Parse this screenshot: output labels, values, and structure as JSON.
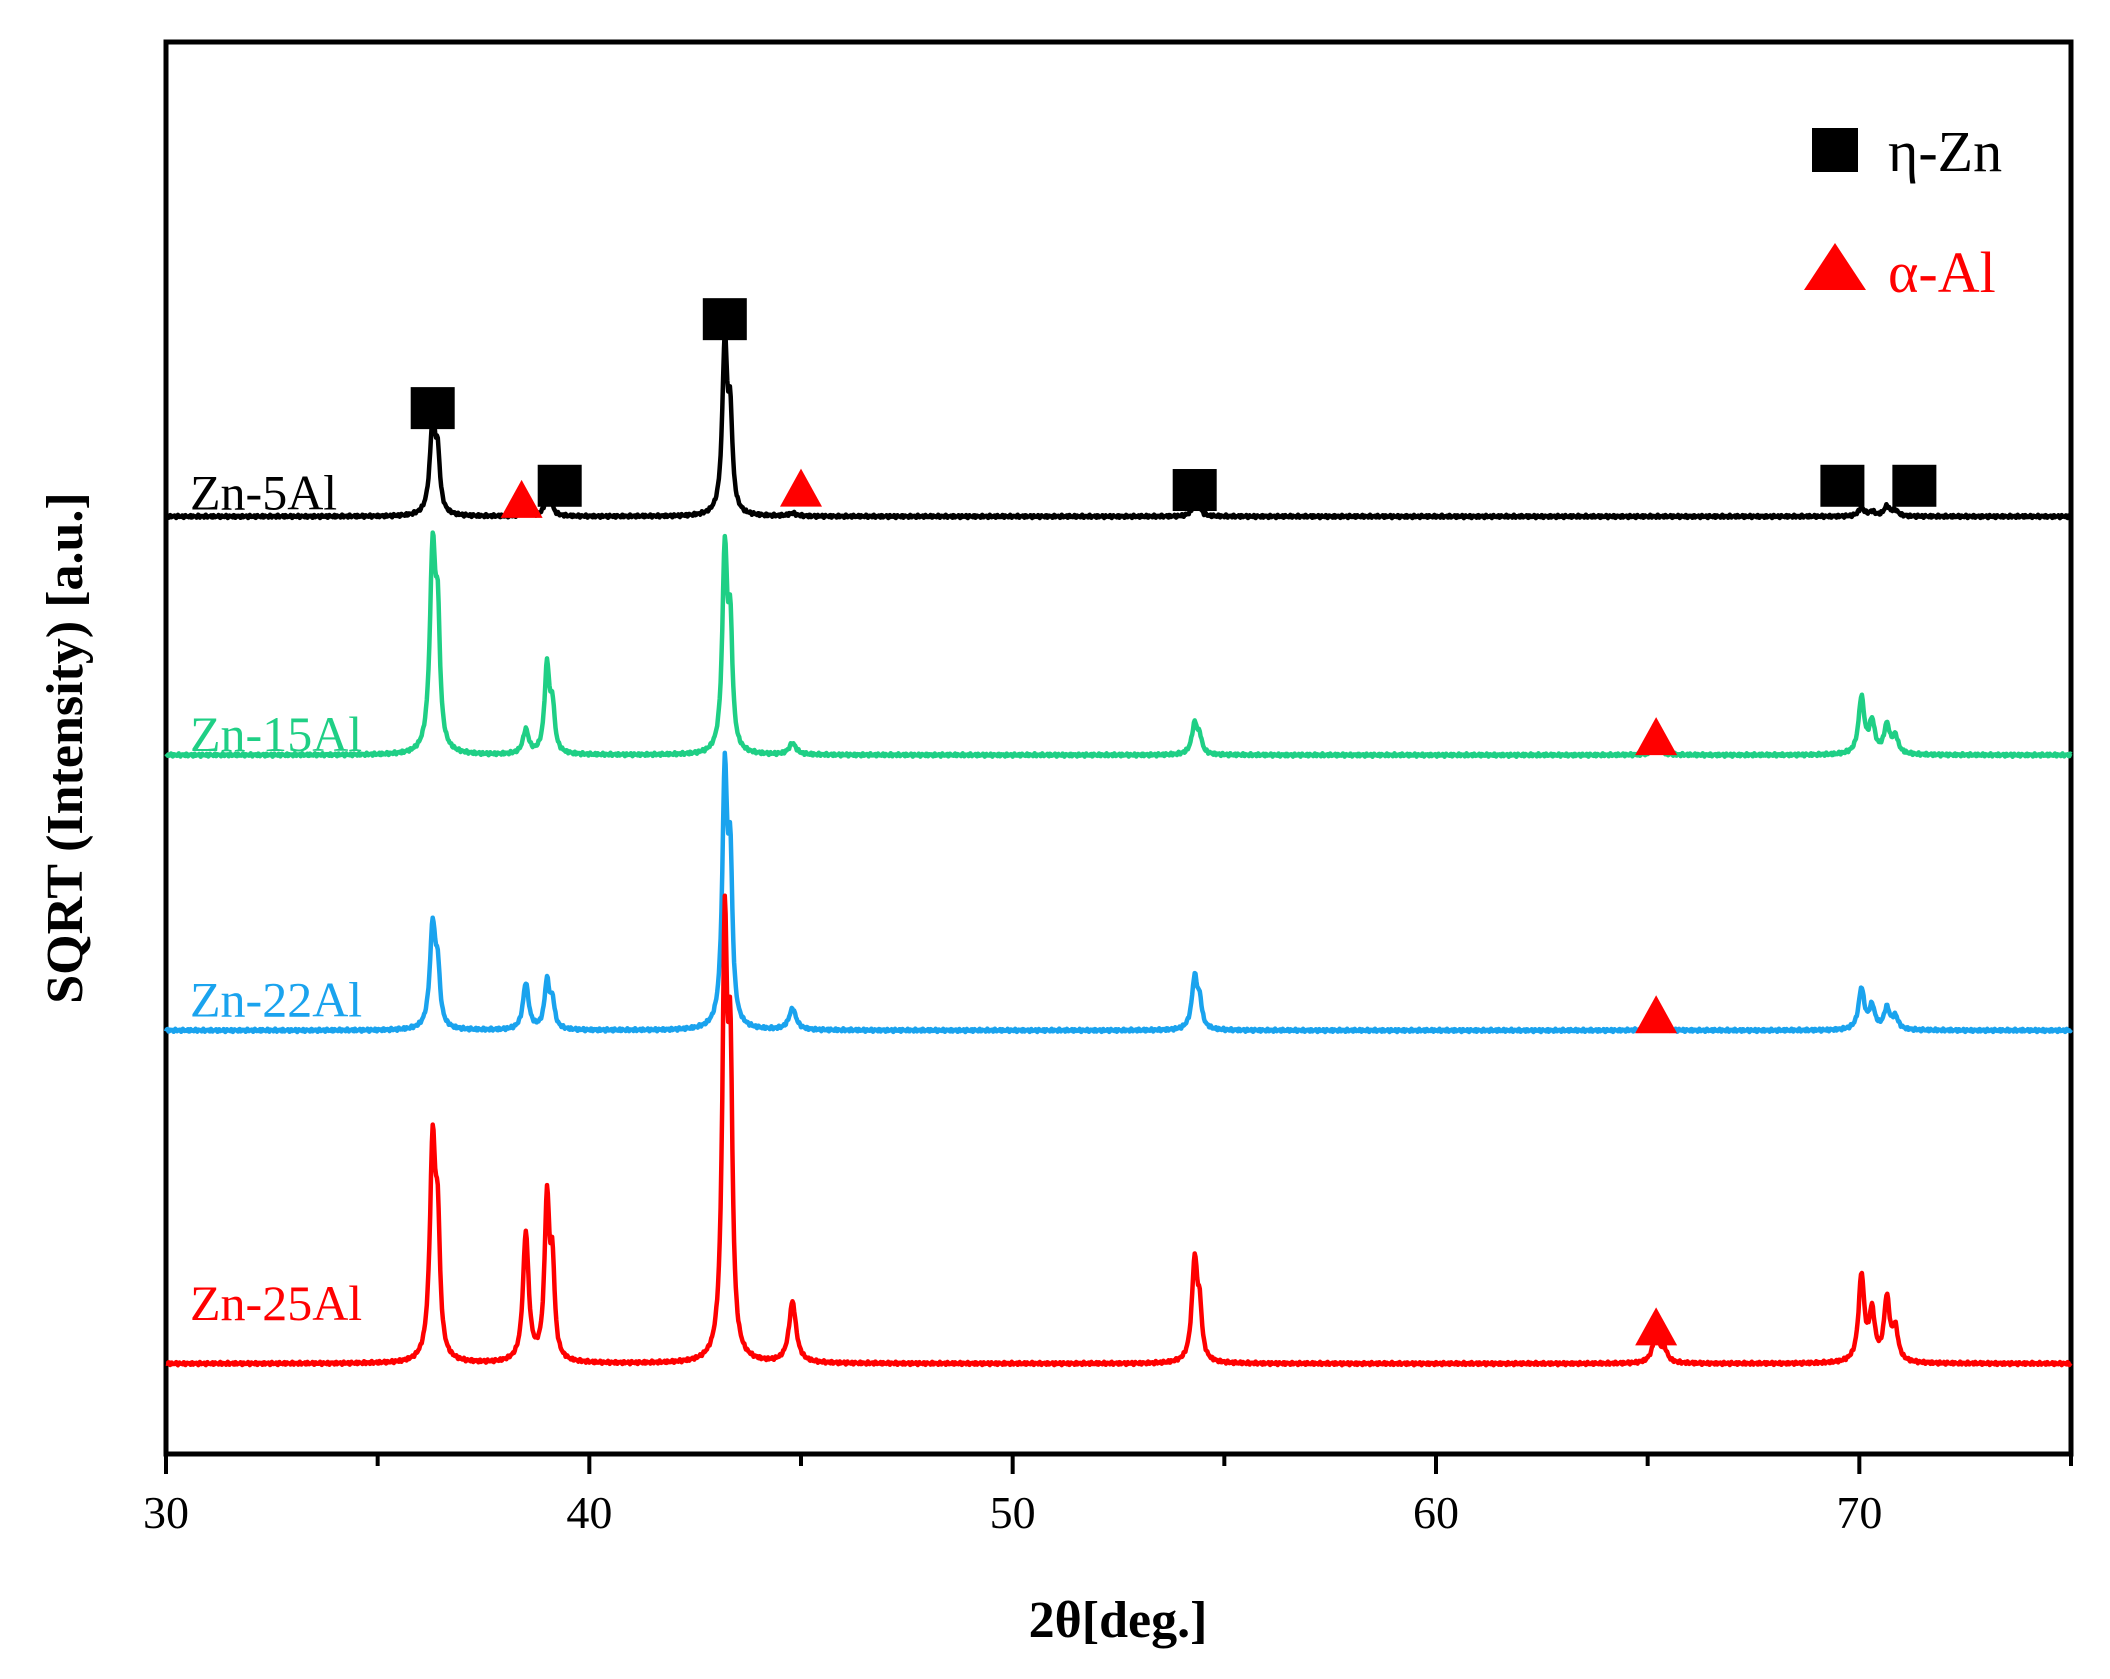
{
  "chart_data": {
    "type": "line",
    "title": "",
    "xlabel": "2θ[deg.]",
    "ylabel": "SQRT (Intensity) [a.u.]",
    "xlim": [
      30,
      75
    ],
    "xticks": [
      30,
      40,
      50,
      60,
      70
    ],
    "xtick_labels": [
      "30",
      "40",
      "50",
      "60",
      "70"
    ],
    "ylim": [
      0,
      100
    ],
    "grid": false,
    "legend_position": "top-right",
    "legend": [
      {
        "marker": "square",
        "label": "η-Zn",
        "color": "#000000"
      },
      {
        "marker": "triangle",
        "label": "α-Al",
        "color": "#ff0000"
      }
    ],
    "series": [
      {
        "name": "Zn-5Al",
        "color": "#000000",
        "baseline": 66.4,
        "peaks": [
          {
            "x": 36.3,
            "h": 6.5,
            "w": 0.08
          },
          {
            "x": 36.42,
            "h": 3.5,
            "w": 0.06
          },
          {
            "x": 38.5,
            "h": 0.3,
            "w": 0.1
          },
          {
            "x": 39.0,
            "h": 1.2,
            "w": 0.08
          },
          {
            "x": 39.1,
            "h": 0.6,
            "w": 0.06
          },
          {
            "x": 43.2,
            "h": 12.1,
            "w": 0.07
          },
          {
            "x": 43.33,
            "h": 6.2,
            "w": 0.06
          },
          {
            "x": 44.8,
            "h": 0.2,
            "w": 0.1
          },
          {
            "x": 54.3,
            "h": 0.9,
            "w": 0.08
          },
          {
            "x": 54.42,
            "h": 0.4,
            "w": 0.06
          },
          {
            "x": 70.05,
            "h": 0.6,
            "w": 0.08
          },
          {
            "x": 70.3,
            "h": 0.3,
            "w": 0.08
          },
          {
            "x": 70.65,
            "h": 0.7,
            "w": 0.08
          },
          {
            "x": 70.85,
            "h": 0.4,
            "w": 0.08
          }
        ]
      },
      {
        "name": "Zn-15Al",
        "color": "#1fcf85",
        "baseline": 49.5,
        "peaks": [
          {
            "x": 36.3,
            "h": 14.2,
            "w": 0.08
          },
          {
            "x": 36.42,
            "h": 8.0,
            "w": 0.06
          },
          {
            "x": 38.5,
            "h": 1.7,
            "w": 0.08
          },
          {
            "x": 39.0,
            "h": 6.2,
            "w": 0.07
          },
          {
            "x": 39.13,
            "h": 3.0,
            "w": 0.06
          },
          {
            "x": 43.2,
            "h": 14.2,
            "w": 0.07
          },
          {
            "x": 43.33,
            "h": 8.0,
            "w": 0.06
          },
          {
            "x": 44.8,
            "h": 0.8,
            "w": 0.1
          },
          {
            "x": 54.3,
            "h": 2.2,
            "w": 0.08
          },
          {
            "x": 54.42,
            "h": 1.0,
            "w": 0.06
          },
          {
            "x": 65.2,
            "h": 0.5,
            "w": 0.12
          },
          {
            "x": 70.05,
            "h": 4.0,
            "w": 0.08
          },
          {
            "x": 70.3,
            "h": 2.2,
            "w": 0.08
          },
          {
            "x": 70.65,
            "h": 2.0,
            "w": 0.08
          },
          {
            "x": 70.85,
            "h": 1.2,
            "w": 0.08
          }
        ]
      },
      {
        "name": "Zn-22Al",
        "color": "#1aa3ee",
        "baseline": 30.0,
        "peaks": [
          {
            "x": 36.3,
            "h": 7.3,
            "w": 0.08
          },
          {
            "x": 36.42,
            "h": 3.5,
            "w": 0.06
          },
          {
            "x": 38.5,
            "h": 3.3,
            "w": 0.08
          },
          {
            "x": 39.0,
            "h": 3.4,
            "w": 0.07
          },
          {
            "x": 39.13,
            "h": 1.8,
            "w": 0.06
          },
          {
            "x": 43.2,
            "h": 17.8,
            "w": 0.07
          },
          {
            "x": 43.33,
            "h": 10.5,
            "w": 0.06
          },
          {
            "x": 44.8,
            "h": 1.5,
            "w": 0.1
          },
          {
            "x": 54.3,
            "h": 3.7,
            "w": 0.08
          },
          {
            "x": 54.42,
            "h": 1.6,
            "w": 0.06
          },
          {
            "x": 65.2,
            "h": 0.5,
            "w": 0.12
          },
          {
            "x": 70.05,
            "h": 2.9,
            "w": 0.08
          },
          {
            "x": 70.3,
            "h": 1.6,
            "w": 0.08
          },
          {
            "x": 70.65,
            "h": 1.5,
            "w": 0.08
          },
          {
            "x": 70.85,
            "h": 0.9,
            "w": 0.08
          }
        ]
      },
      {
        "name": "Zn-25Al",
        "color": "#ff0000",
        "baseline": 6.4,
        "peaks": [
          {
            "x": 36.3,
            "h": 15.3,
            "w": 0.08
          },
          {
            "x": 36.42,
            "h": 8.0,
            "w": 0.06
          },
          {
            "x": 38.5,
            "h": 9.1,
            "w": 0.08
          },
          {
            "x": 39.0,
            "h": 11.3,
            "w": 0.07
          },
          {
            "x": 39.13,
            "h": 6.0,
            "w": 0.06
          },
          {
            "x": 43.2,
            "h": 29.8,
            "w": 0.07
          },
          {
            "x": 43.33,
            "h": 19.0,
            "w": 0.06
          },
          {
            "x": 44.8,
            "h": 4.3,
            "w": 0.1
          },
          {
            "x": 54.3,
            "h": 7.2,
            "w": 0.08
          },
          {
            "x": 54.42,
            "h": 3.0,
            "w": 0.06
          },
          {
            "x": 65.2,
            "h": 2.0,
            "w": 0.1
          },
          {
            "x": 65.4,
            "h": 0.8,
            "w": 0.08
          },
          {
            "x": 70.05,
            "h": 6.1,
            "w": 0.08
          },
          {
            "x": 70.3,
            "h": 3.4,
            "w": 0.08
          },
          {
            "x": 70.65,
            "h": 4.4,
            "w": 0.08
          },
          {
            "x": 70.85,
            "h": 2.2,
            "w": 0.08
          }
        ]
      }
    ],
    "phase_markers": [
      {
        "phase": "η-Zn",
        "marker": "square",
        "x": 36.3,
        "y": 74.0
      },
      {
        "phase": "α-Al",
        "marker": "triangle",
        "x": 38.4,
        "y": 67.5
      },
      {
        "phase": "η-Zn",
        "marker": "square",
        "x": 39.3,
        "y": 68.5
      },
      {
        "phase": "η-Zn",
        "marker": "square",
        "x": 43.2,
        "y": 80.3
      },
      {
        "phase": "α-Al",
        "marker": "triangle",
        "x": 45.0,
        "y": 68.3
      },
      {
        "phase": "η-Zn",
        "marker": "square",
        "x": 54.3,
        "y": 68.2
      },
      {
        "phase": "η-Zn",
        "marker": "square",
        "x": 69.6,
        "y": 68.5
      },
      {
        "phase": "η-Zn",
        "marker": "square",
        "x": 71.3,
        "y": 68.5
      },
      {
        "phase": "α-Al",
        "marker": "triangle",
        "x": 65.2,
        "y": 50.7
      },
      {
        "phase": "α-Al",
        "marker": "triangle",
        "x": 65.2,
        "y": 31.0
      },
      {
        "phase": "α-Al",
        "marker": "triangle",
        "x": 65.2,
        "y": 8.9
      }
    ]
  }
}
